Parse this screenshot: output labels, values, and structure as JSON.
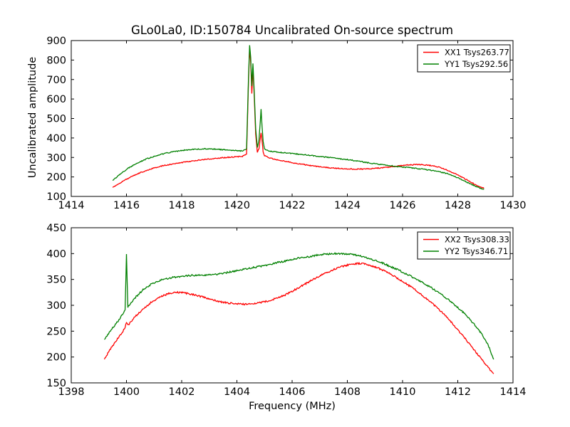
{
  "figure": {
    "title": "GLo0La0, ID:150784 Uncalibrated On-source spectrum",
    "background_color": "#ffffff",
    "axis_color": "#000000",
    "text_color": "#000000"
  },
  "chart_data": [
    {
      "type": "line",
      "subplot": "top",
      "xlabel": "",
      "ylabel": "Uncalibrated amplitude",
      "xlim": [
        1414,
        1430
      ],
      "ylim": [
        100,
        900
      ],
      "xticks": [
        1414,
        1416,
        1418,
        1420,
        1422,
        1424,
        1426,
        1428,
        1430
      ],
      "yticks": [
        100,
        200,
        300,
        400,
        500,
        600,
        700,
        800,
        900
      ],
      "grid": false,
      "legend": {
        "position": "upper right"
      },
      "noise_amplitude": 2.5,
      "series": [
        {
          "name": "XX1 Tsys263.77",
          "color": "#ff0000",
          "points": [
            [
              1415.5,
              146
            ],
            [
              1415.8,
              172
            ],
            [
              1416.1,
              196
            ],
            [
              1416.4,
              216
            ],
            [
              1416.7,
              232
            ],
            [
              1417.0,
              246
            ],
            [
              1417.3,
              257
            ],
            [
              1417.6,
              265
            ],
            [
              1418.0,
              274
            ],
            [
              1418.4,
              282
            ],
            [
              1418.8,
              289
            ],
            [
              1419.2,
              295
            ],
            [
              1419.6,
              300
            ],
            [
              1420.0,
              304
            ],
            [
              1420.2,
              306
            ],
            [
              1420.35,
              316
            ],
            [
              1420.42,
              690
            ],
            [
              1420.46,
              858
            ],
            [
              1420.5,
              788
            ],
            [
              1420.54,
              628
            ],
            [
              1420.58,
              758
            ],
            [
              1420.62,
              640
            ],
            [
              1420.68,
              420
            ],
            [
              1420.74,
              326
            ],
            [
              1420.8,
              345
            ],
            [
              1420.84,
              390
            ],
            [
              1420.875,
              428
            ],
            [
              1420.91,
              388
            ],
            [
              1420.95,
              330
            ],
            [
              1421.0,
              308
            ],
            [
              1421.2,
              297
            ],
            [
              1421.5,
              287
            ],
            [
              1422.0,
              273
            ],
            [
              1422.5,
              262
            ],
            [
              1423.0,
              252
            ],
            [
              1423.5,
              245
            ],
            [
              1424.0,
              241
            ],
            [
              1424.4,
              240
            ],
            [
              1424.8,
              242
            ],
            [
              1425.2,
              246
            ],
            [
              1425.6,
              252
            ],
            [
              1426.0,
              259
            ],
            [
              1426.3,
              262
            ],
            [
              1426.6,
              264
            ],
            [
              1427.0,
              259
            ],
            [
              1427.3,
              251
            ],
            [
              1427.6,
              236
            ],
            [
              1428.0,
              210
            ],
            [
              1428.4,
              180
            ],
            [
              1428.7,
              155
            ],
            [
              1428.95,
              141
            ]
          ]
        },
        {
          "name": "YY1 Tsys292.56",
          "color": "#008000",
          "points": [
            [
              1415.5,
              181
            ],
            [
              1415.8,
              218
            ],
            [
              1416.1,
              248
            ],
            [
              1416.4,
              272
            ],
            [
              1416.7,
              291
            ],
            [
              1417.0,
              306
            ],
            [
              1417.3,
              318
            ],
            [
              1417.6,
              327
            ],
            [
              1418.0,
              336
            ],
            [
              1418.4,
              341
            ],
            [
              1418.8,
              344
            ],
            [
              1419.2,
              343
            ],
            [
              1419.6,
              339
            ],
            [
              1420.0,
              335
            ],
            [
              1420.2,
              333
            ],
            [
              1420.35,
              342
            ],
            [
              1420.42,
              712
            ],
            [
              1420.46,
              878
            ],
            [
              1420.5,
              812
            ],
            [
              1420.54,
              668
            ],
            [
              1420.58,
              780
            ],
            [
              1420.62,
              664
            ],
            [
              1420.68,
              445
            ],
            [
              1420.74,
              352
            ],
            [
              1420.8,
              390
            ],
            [
              1420.84,
              470
            ],
            [
              1420.875,
              548
            ],
            [
              1420.91,
              462
            ],
            [
              1420.95,
              382
            ],
            [
              1421.0,
              342
            ],
            [
              1421.2,
              332
            ],
            [
              1421.5,
              327
            ],
            [
              1422.0,
              320
            ],
            [
              1422.5,
              313
            ],
            [
              1423.0,
              305
            ],
            [
              1423.5,
              297
            ],
            [
              1424.0,
              289
            ],
            [
              1424.4,
              281
            ],
            [
              1424.8,
              272
            ],
            [
              1425.2,
              264
            ],
            [
              1425.6,
              257
            ],
            [
              1426.0,
              251
            ],
            [
              1426.4,
              245
            ],
            [
              1426.8,
              239
            ],
            [
              1427.2,
              230
            ],
            [
              1427.6,
              218
            ],
            [
              1428.0,
              196
            ],
            [
              1428.4,
              168
            ],
            [
              1428.7,
              148
            ],
            [
              1428.95,
              136
            ]
          ]
        }
      ]
    },
    {
      "type": "line",
      "subplot": "bottom",
      "xlabel": "Frequency (MHz)",
      "ylabel": "",
      "xlim": [
        1398,
        1414
      ],
      "ylim": [
        150,
        450
      ],
      "xticks": [
        1398,
        1400,
        1402,
        1404,
        1406,
        1408,
        1410,
        1412,
        1414
      ],
      "yticks": [
        150,
        200,
        250,
        300,
        350,
        400,
        450
      ],
      "grid": false,
      "legend": {
        "position": "upper right"
      },
      "noise_amplitude": 1.6,
      "series": [
        {
          "name": "XX2 Tsys308.33",
          "color": "#ff0000",
          "points": [
            [
              1399.2,
              196
            ],
            [
              1399.45,
              218
            ],
            [
              1399.7,
              237
            ],
            [
              1399.95,
              256
            ],
            [
              1400.0,
              268
            ],
            [
              1400.05,
              261
            ],
            [
              1400.3,
              277
            ],
            [
              1400.6,
              293
            ],
            [
              1400.9,
              306
            ],
            [
              1401.2,
              316
            ],
            [
              1401.5,
              322
            ],
            [
              1401.8,
              325
            ],
            [
              1402.1,
              324
            ],
            [
              1402.4,
              321
            ],
            [
              1402.7,
              317
            ],
            [
              1403.0,
              312
            ],
            [
              1403.3,
              308
            ],
            [
              1403.6,
              305
            ],
            [
              1403.9,
              303
            ],
            [
              1404.2,
              302
            ],
            [
              1404.5,
              303
            ],
            [
              1404.8,
              305
            ],
            [
              1405.1,
              308
            ],
            [
              1405.4,
              313
            ],
            [
              1405.7,
              319
            ],
            [
              1406.0,
              327
            ],
            [
              1406.3,
              336
            ],
            [
              1406.6,
              345
            ],
            [
              1406.9,
              354
            ],
            [
              1407.2,
              362
            ],
            [
              1407.5,
              369
            ],
            [
              1407.8,
              375
            ],
            [
              1408.1,
              379
            ],
            [
              1408.35,
              381
            ],
            [
              1408.6,
              380
            ],
            [
              1408.9,
              376
            ],
            [
              1409.2,
              370
            ],
            [
              1409.5,
              362
            ],
            [
              1409.8,
              353
            ],
            [
              1410.1,
              343
            ],
            [
              1410.4,
              332
            ],
            [
              1410.7,
              320
            ],
            [
              1411.0,
              307
            ],
            [
              1411.3,
              293
            ],
            [
              1411.6,
              277
            ],
            [
              1411.9,
              259
            ],
            [
              1412.2,
              240
            ],
            [
              1412.5,
              220
            ],
            [
              1412.8,
              200
            ],
            [
              1413.05,
              183
            ],
            [
              1413.3,
              167
            ]
          ]
        },
        {
          "name": "YY2 Tsys346.71",
          "color": "#008000",
          "points": [
            [
              1399.2,
              234
            ],
            [
              1399.45,
              253
            ],
            [
              1399.7,
              270
            ],
            [
              1399.95,
              291
            ],
            [
              1400.0,
              398
            ],
            [
              1400.05,
              297
            ],
            [
              1400.3,
              314
            ],
            [
              1400.6,
              330
            ],
            [
              1400.9,
              341
            ],
            [
              1401.2,
              348
            ],
            [
              1401.5,
              352
            ],
            [
              1401.8,
              355
            ],
            [
              1402.1,
              357
            ],
            [
              1402.4,
              358
            ],
            [
              1402.7,
              358
            ],
            [
              1403.0,
              359
            ],
            [
              1403.3,
              360
            ],
            [
              1403.6,
              363
            ],
            [
              1403.9,
              366
            ],
            [
              1404.2,
              369
            ],
            [
              1404.5,
              372
            ],
            [
              1404.8,
              375
            ],
            [
              1405.1,
              378
            ],
            [
              1405.4,
              382
            ],
            [
              1405.7,
              385
            ],
            [
              1406.0,
              389
            ],
            [
              1406.3,
              392
            ],
            [
              1406.6,
              394
            ],
            [
              1406.9,
              397
            ],
            [
              1407.2,
              399
            ],
            [
              1407.5,
              400
            ],
            [
              1407.8,
              400
            ],
            [
              1408.1,
              399
            ],
            [
              1408.4,
              396
            ],
            [
              1408.7,
              392
            ],
            [
              1409.0,
              387
            ],
            [
              1409.3,
              381
            ],
            [
              1409.6,
              374
            ],
            [
              1409.9,
              367
            ],
            [
              1410.2,
              359
            ],
            [
              1410.5,
              351
            ],
            [
              1410.8,
              342
            ],
            [
              1411.1,
              332
            ],
            [
              1411.4,
              321
            ],
            [
              1411.7,
              309
            ],
            [
              1412.0,
              296
            ],
            [
              1412.3,
              281
            ],
            [
              1412.6,
              263
            ],
            [
              1412.9,
              242
            ],
            [
              1413.1,
              224
            ],
            [
              1413.3,
              194
            ]
          ]
        }
      ]
    }
  ]
}
